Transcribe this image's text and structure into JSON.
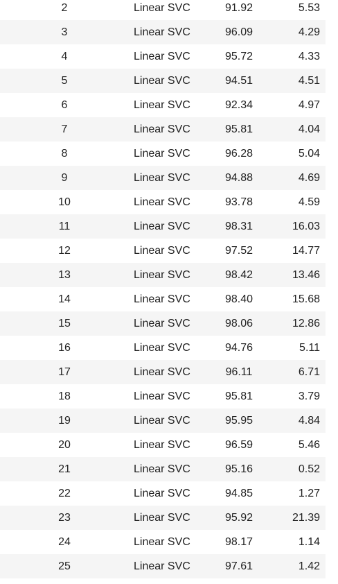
{
  "table": {
    "rows": [
      {
        "index": "2",
        "model": "Linear SVC",
        "accuracy": "91.92",
        "time": "5.53"
      },
      {
        "index": "3",
        "model": "Linear SVC",
        "accuracy": "96.09",
        "time": "4.29"
      },
      {
        "index": "4",
        "model": "Linear SVC",
        "accuracy": "95.72",
        "time": "4.33"
      },
      {
        "index": "5",
        "model": "Linear SVC",
        "accuracy": "94.51",
        "time": "4.51"
      },
      {
        "index": "6",
        "model": "Linear SVC",
        "accuracy": "92.34",
        "time": "4.97"
      },
      {
        "index": "7",
        "model": "Linear SVC",
        "accuracy": "95.81",
        "time": "4.04"
      },
      {
        "index": "8",
        "model": "Linear SVC",
        "accuracy": "96.28",
        "time": "5.04"
      },
      {
        "index": "9",
        "model": "Linear SVC",
        "accuracy": "94.88",
        "time": "4.69"
      },
      {
        "index": "10",
        "model": "Linear SVC",
        "accuracy": "93.78",
        "time": "4.59"
      },
      {
        "index": "11",
        "model": "Linear SVC",
        "accuracy": "98.31",
        "time": "16.03"
      },
      {
        "index": "12",
        "model": "Linear SVC",
        "accuracy": "97.52",
        "time": "14.77"
      },
      {
        "index": "13",
        "model": "Linear SVC",
        "accuracy": "98.42",
        "time": "13.46"
      },
      {
        "index": "14",
        "model": "Linear SVC",
        "accuracy": "98.40",
        "time": "15.68"
      },
      {
        "index": "15",
        "model": "Linear SVC",
        "accuracy": "98.06",
        "time": "12.86"
      },
      {
        "index": "16",
        "model": "Linear SVC",
        "accuracy": "94.76",
        "time": "5.11"
      },
      {
        "index": "17",
        "model": "Linear SVC",
        "accuracy": "96.11",
        "time": "6.71"
      },
      {
        "index": "18",
        "model": "Linear SVC",
        "accuracy": "95.81",
        "time": "3.79"
      },
      {
        "index": "19",
        "model": "Linear SVC",
        "accuracy": "95.95",
        "time": "4.84"
      },
      {
        "index": "20",
        "model": "Linear SVC",
        "accuracy": "96.59",
        "time": "5.46"
      },
      {
        "index": "21",
        "model": "Linear SVC",
        "accuracy": "95.16",
        "time": "0.52"
      },
      {
        "index": "22",
        "model": "Linear SVC",
        "accuracy": "94.85",
        "time": "1.27"
      },
      {
        "index": "23",
        "model": "Linear SVC",
        "accuracy": "95.92",
        "time": "21.39"
      },
      {
        "index": "24",
        "model": "Linear SVC",
        "accuracy": "98.17",
        "time": "1.14"
      },
      {
        "index": "25",
        "model": "Linear SVC",
        "accuracy": "97.61",
        "time": "1.42"
      }
    ],
    "colors": {
      "row_alt_background": "#f5f5f5",
      "text": "#222222"
    }
  }
}
